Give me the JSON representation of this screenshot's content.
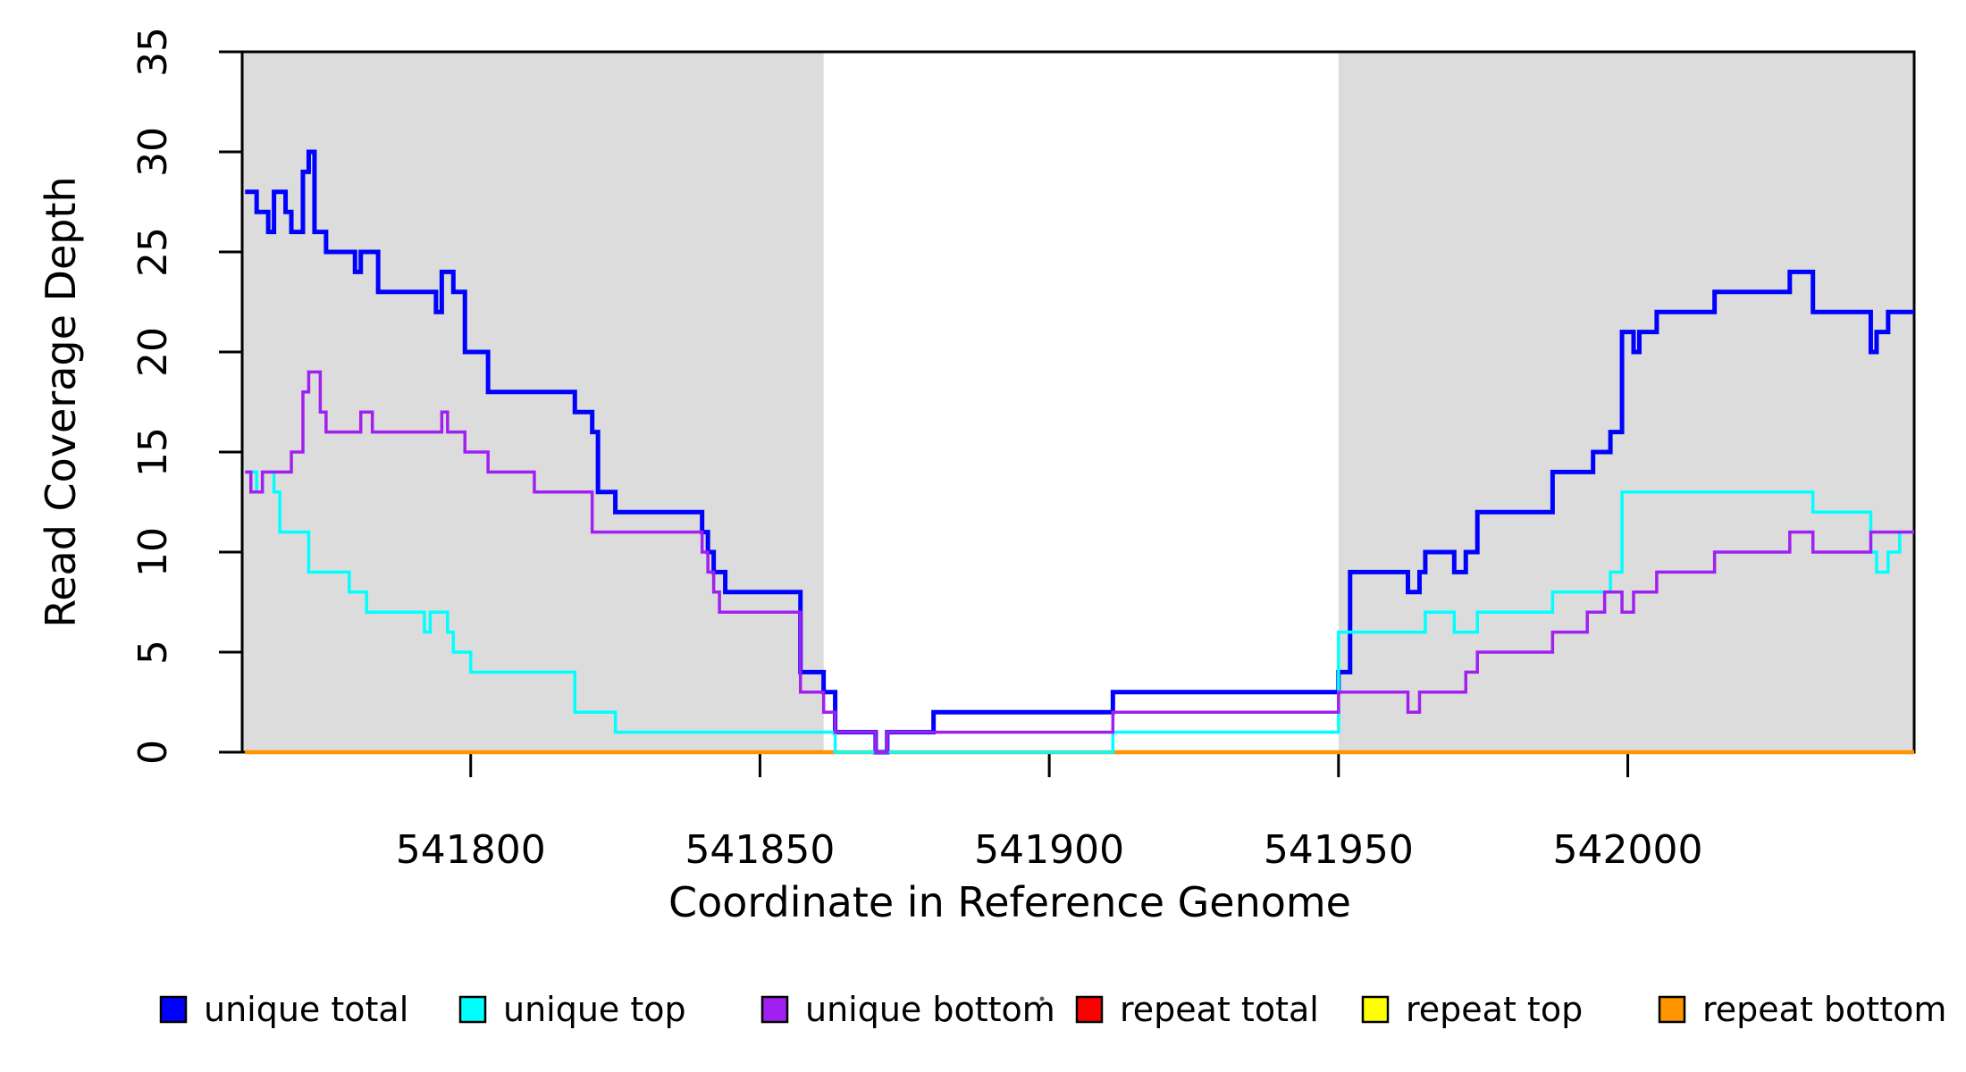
{
  "figure": {
    "background": "#FFFFFF",
    "frame_color": "#000000"
  },
  "chart_data": {
    "type": "line",
    "subtype": "step",
    "title": "",
    "xlabel": "Coordinate in Reference Genome",
    "ylabel": "Read Coverage Depth",
    "xlim": [
      541760.5,
      542049.5
    ],
    "ylim": [
      0,
      35
    ],
    "x_ticks": [
      541800,
      541850,
      541900,
      541950,
      542000
    ],
    "y_ticks": [
      0,
      5,
      10,
      15,
      20,
      25,
      30,
      35
    ],
    "grid": false,
    "legend_position": "bottom",
    "shaded_regions": {
      "color": "#DCDCDC",
      "x_ranges": [
        [
          541760.5,
          541861
        ],
        [
          541950,
          542049.5
        ]
      ]
    },
    "draw_order": [
      3,
      4,
      5,
      0,
      1,
      2
    ],
    "series": [
      {
        "id": "unique-total",
        "name": "unique total",
        "color": "#0000FF",
        "width": 5,
        "points": [
          [
            541761,
            28
          ],
          [
            541763,
            27
          ],
          [
            541765,
            26
          ],
          [
            541766,
            28
          ],
          [
            541768,
            27
          ],
          [
            541769,
            26
          ],
          [
            541771,
            29
          ],
          [
            541772,
            30
          ],
          [
            541773,
            26
          ],
          [
            541775,
            25
          ],
          [
            541780,
            24
          ],
          [
            541781,
            25
          ],
          [
            541784,
            23
          ],
          [
            541794,
            22
          ],
          [
            541795,
            24
          ],
          [
            541797,
            23
          ],
          [
            541799,
            20
          ],
          [
            541803,
            18
          ],
          [
            541818,
            17
          ],
          [
            541821,
            16
          ],
          [
            541822,
            13
          ],
          [
            541825,
            12
          ],
          [
            541840,
            11
          ],
          [
            541841,
            10
          ],
          [
            541842,
            9
          ],
          [
            541844,
            8
          ],
          [
            541857,
            4
          ],
          [
            541861,
            3
          ],
          [
            541863,
            1
          ],
          [
            541870,
            0
          ],
          [
            541872,
            1
          ],
          [
            541880,
            2
          ],
          [
            541911,
            3
          ],
          [
            541950,
            4
          ],
          [
            541952,
            9
          ],
          [
            541962,
            8
          ],
          [
            541964,
            9
          ],
          [
            541965,
            10
          ],
          [
            541970,
            9
          ],
          [
            541972,
            10
          ],
          [
            541974,
            12
          ],
          [
            541987,
            14
          ],
          [
            541994,
            15
          ],
          [
            541997,
            16
          ],
          [
            541999,
            21
          ],
          [
            542001,
            20
          ],
          [
            542002,
            21
          ],
          [
            542005,
            22
          ],
          [
            542015,
            23
          ],
          [
            542028,
            24
          ],
          [
            542032,
            22
          ],
          [
            542042,
            20
          ],
          [
            542043,
            21
          ],
          [
            542045,
            22
          ]
        ]
      },
      {
        "id": "unique-top",
        "name": "unique top",
        "color": "#00FFFF",
        "width": 3.5,
        "points": [
          [
            541761,
            14
          ],
          [
            541763,
            13
          ],
          [
            541764,
            14
          ],
          [
            541766,
            13
          ],
          [
            541767,
            11
          ],
          [
            541772,
            9
          ],
          [
            541779,
            8
          ],
          [
            541782,
            7
          ],
          [
            541792,
            6
          ],
          [
            541793,
            7
          ],
          [
            541796,
            6
          ],
          [
            541797,
            5
          ],
          [
            541800,
            4
          ],
          [
            541818,
            2
          ],
          [
            541825,
            1
          ],
          [
            541863,
            0
          ],
          [
            541911,
            1
          ],
          [
            541950,
            6
          ],
          [
            541965,
            7
          ],
          [
            541970,
            6
          ],
          [
            541974,
            7
          ],
          [
            541987,
            8
          ],
          [
            541997,
            9
          ],
          [
            541999,
            13
          ],
          [
            542032,
            12
          ],
          [
            542042,
            10
          ],
          [
            542043,
            9
          ],
          [
            542045,
            10
          ],
          [
            542047,
            11
          ]
        ]
      },
      {
        "id": "unique-bottom",
        "name": "unique bottom",
        "color": "#A020F0",
        "width": 3.5,
        "points": [
          [
            541761,
            14
          ],
          [
            541762,
            13
          ],
          [
            541764,
            14
          ],
          [
            541769,
            15
          ],
          [
            541771,
            18
          ],
          [
            541772,
            19
          ],
          [
            541774,
            17
          ],
          [
            541775,
            16
          ],
          [
            541781,
            17
          ],
          [
            541783,
            16
          ],
          [
            541795,
            17
          ],
          [
            541796,
            16
          ],
          [
            541799,
            15
          ],
          [
            541803,
            14
          ],
          [
            541811,
            13
          ],
          [
            541821,
            11
          ],
          [
            541840,
            10
          ],
          [
            541841,
            9
          ],
          [
            541842,
            8
          ],
          [
            541843,
            7
          ],
          [
            541857,
            3
          ],
          [
            541861,
            2
          ],
          [
            541863,
            1
          ],
          [
            541870,
            0
          ],
          [
            541872,
            1
          ],
          [
            541911,
            2
          ],
          [
            541950,
            3
          ],
          [
            541962,
            2
          ],
          [
            541964,
            3
          ],
          [
            541972,
            4
          ],
          [
            541974,
            5
          ],
          [
            541987,
            6
          ],
          [
            541993,
            7
          ],
          [
            541996,
            8
          ],
          [
            541999,
            7
          ],
          [
            542001,
            8
          ],
          [
            542005,
            9
          ],
          [
            542015,
            10
          ],
          [
            542028,
            11
          ],
          [
            542032,
            10
          ],
          [
            542042,
            11
          ]
        ]
      },
      {
        "id": "repeat-total",
        "name": "repeat total",
        "color": "#FF0000",
        "width": 4,
        "points": [
          [
            541761,
            0
          ]
        ]
      },
      {
        "id": "repeat-top",
        "name": "repeat top",
        "color": "#FFFF00",
        "width": 4,
        "points": [
          [
            541761,
            0
          ]
        ]
      },
      {
        "id": "repeat-bottom",
        "name": "repeat bottom",
        "color": "#FF9300",
        "width": 4.5,
        "points": [
          [
            541761,
            0
          ]
        ]
      }
    ]
  },
  "legend": {
    "items": [
      {
        "label": "unique total",
        "color": "#0000FF"
      },
      {
        "label": "unique top",
        "color": "#00FFFF"
      },
      {
        "label": "unique bottom",
        "color": "#A020F0"
      },
      {
        "label": "repeat total",
        "color": "#FF0000"
      },
      {
        "label": "repeat top",
        "color": "#FFFF00"
      },
      {
        "label": "repeat bottom",
        "color": "#FF9300"
      }
    ]
  }
}
